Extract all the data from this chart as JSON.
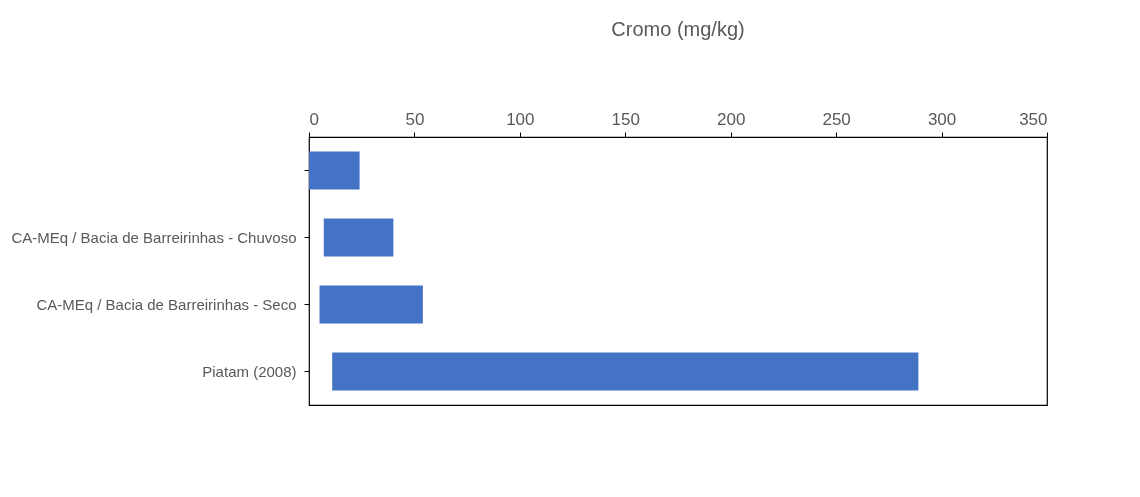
{
  "chart_data": {
    "type": "bar",
    "orientation": "horizontal",
    "title": "Cromo (mg/kg)",
    "categories": [
      null,
      "CA-MEq / Bacia de Barreirinhas - Chuvoso",
      "CA-MEq / Bacia de Barreirinhas - Seco",
      "Piatam (2008)"
    ],
    "base": [
      0,
      7,
      5,
      11
    ],
    "values": [
      24,
      33,
      49,
      278
    ],
    "color": "#4472c4",
    "xlim": [
      0,
      350
    ],
    "xticks": [
      0,
      50,
      100,
      150,
      200,
      250,
      300,
      350
    ],
    "grid": false
  }
}
